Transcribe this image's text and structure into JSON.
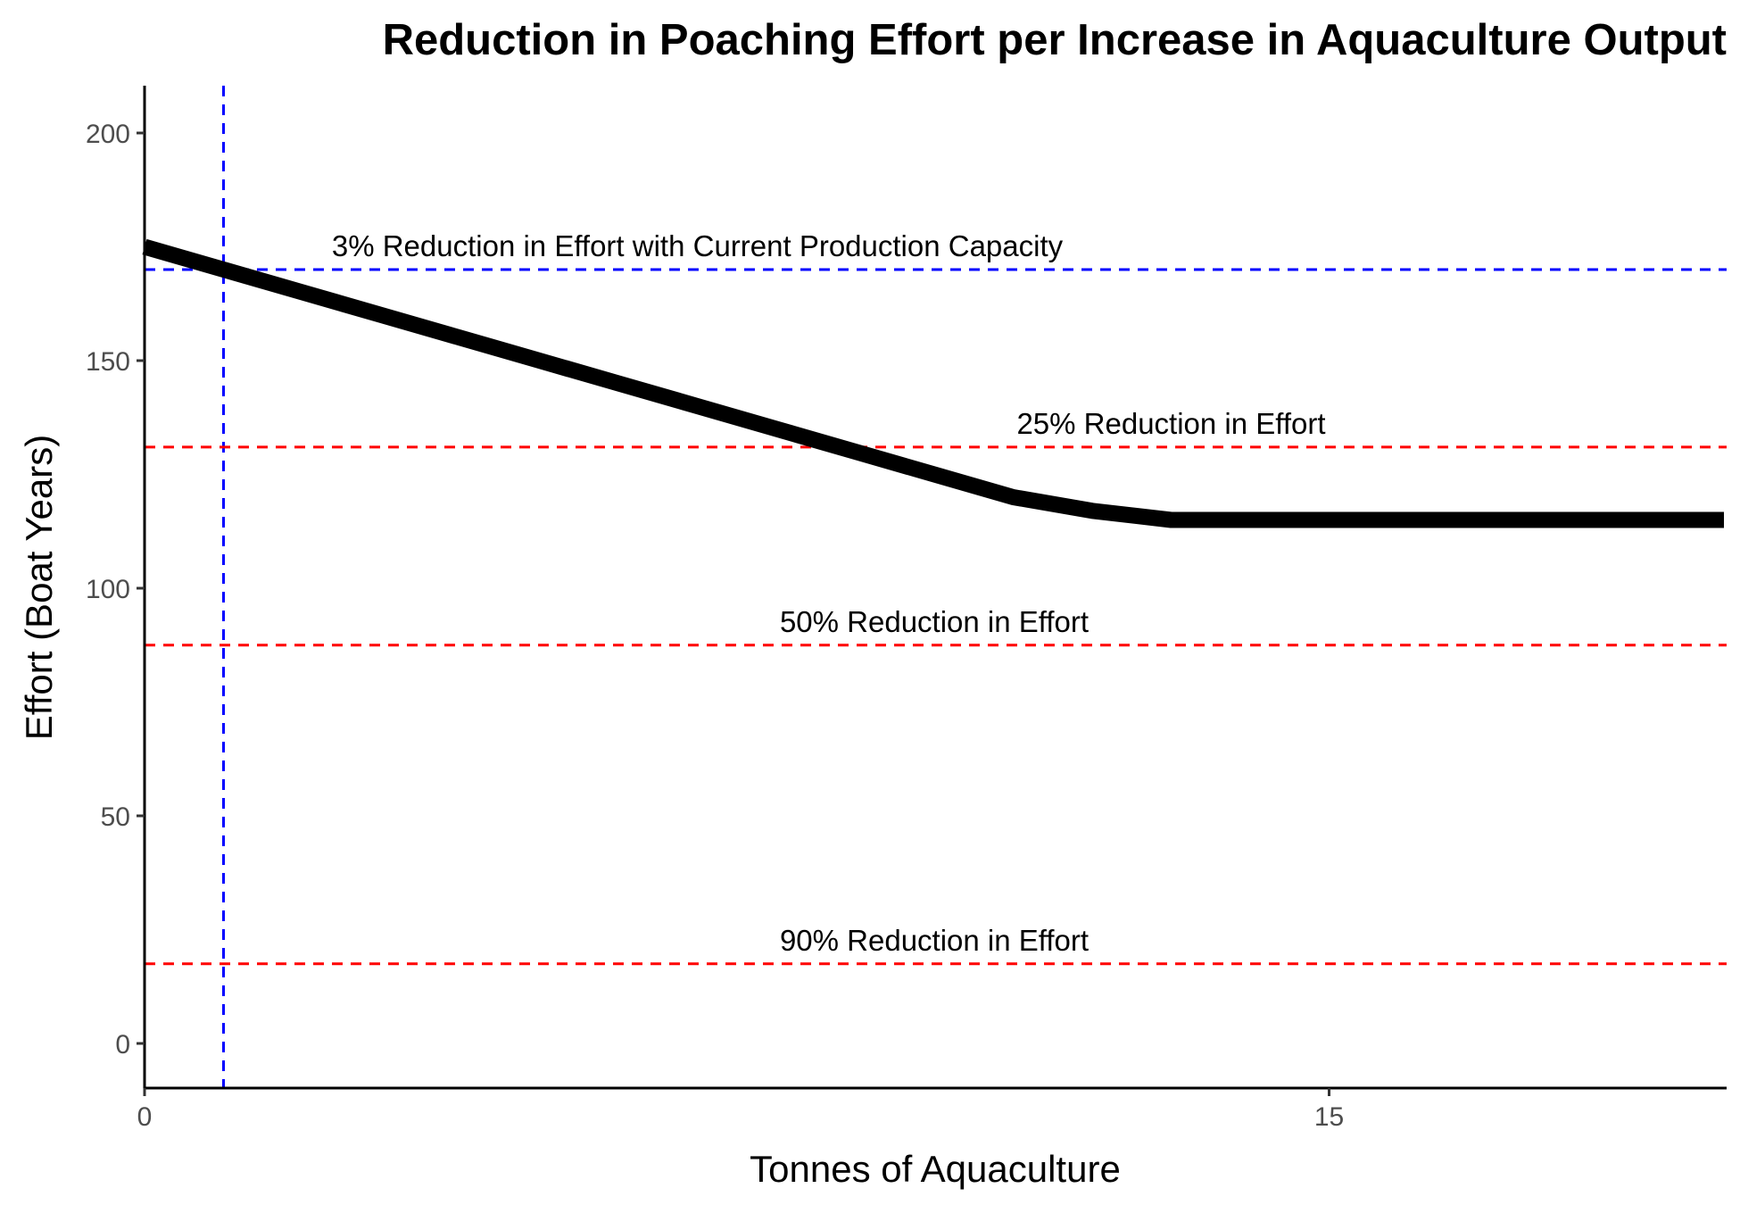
{
  "chart_data": {
    "type": "line",
    "title": "Reduction in Poaching Effort per Increase in Aquaculture Output",
    "xlabel": "Tonnes of Aquaculture",
    "ylabel": "Effort (Boat Years)",
    "xlim": [
      0,
      20
    ],
    "ylim": [
      -10,
      210
    ],
    "x_ticks": [
      0,
      15
    ],
    "y_ticks": [
      0,
      50,
      100,
      150,
      200
    ],
    "grid": false,
    "legend": "none",
    "series": [
      {
        "color": "#000000",
        "x": [
          0,
          1,
          2,
          3,
          4,
          5,
          6,
          7,
          8,
          9,
          10,
          11,
          12,
          13,
          14,
          15,
          16,
          17,
          18,
          19,
          20
        ],
        "y": [
          175,
          170,
          165,
          160,
          155,
          150,
          145,
          140,
          135,
          130,
          125,
          120,
          117,
          115,
          115,
          115,
          115,
          115,
          115,
          115,
          115
        ]
      }
    ],
    "reference_lines": [
      {
        "orientation": "vertical",
        "x": 1,
        "color": "#0000ff",
        "style": "dashed"
      },
      {
        "orientation": "horizontal",
        "y": 170,
        "color": "#0000ff",
        "style": "dashed",
        "label": "3% Reduction in Effort with Current Production Capacity",
        "label_x": 7
      },
      {
        "orientation": "horizontal",
        "y": 131,
        "color": "#ff0000",
        "style": "dashed",
        "label": "25% Reduction in Effort",
        "label_x": 13
      },
      {
        "orientation": "horizontal",
        "y": 87.5,
        "color": "#ff0000",
        "style": "dashed",
        "label": "50% Reduction in Effort",
        "label_x": 10
      },
      {
        "orientation": "horizontal",
        "y": 17.5,
        "color": "#ff0000",
        "style": "dashed",
        "label": "90% Reduction in Effort",
        "label_x": 10
      }
    ]
  }
}
